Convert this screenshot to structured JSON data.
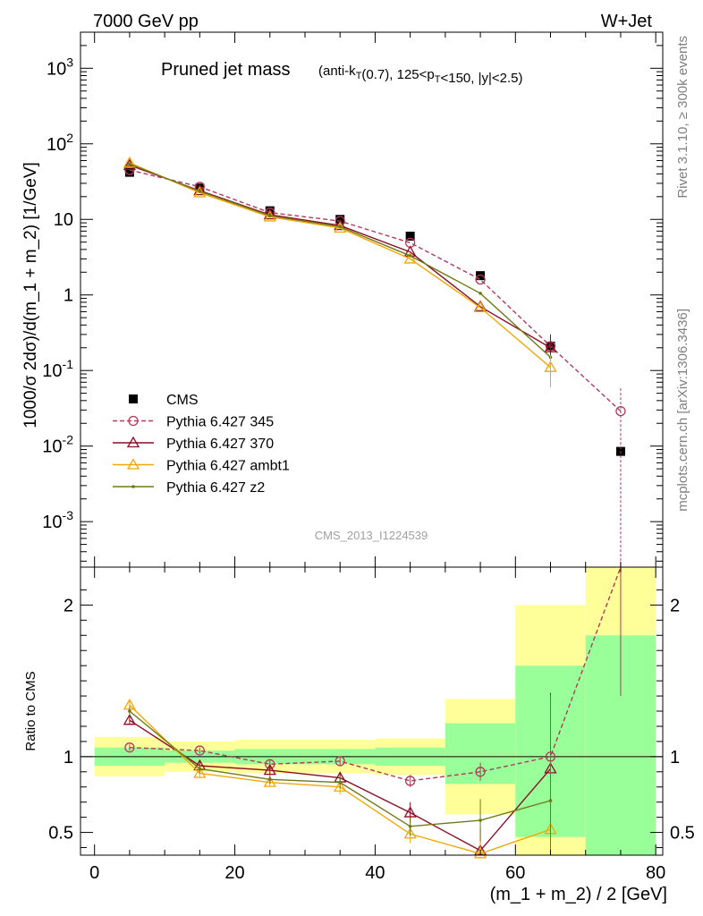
{
  "header": {
    "left": "7000 GeV pp",
    "right": "W+Jet",
    "side_top": "Rivet 3.1.10, ≥ 300k events",
    "side_bottom": "mcplots.cern.ch [arXiv:1306.3436]",
    "watermark": "CMS_2013_I1224539"
  },
  "chart_data": [
    {
      "type": "scatter",
      "title": "Pruned jet mass",
      "subtitle": "(anti-k_T(0.7), 125<p_T<150, |y|<2.5)",
      "xlabel": "",
      "ylabel": "1000/σ 2dσ)/d(m_1 + m_2) [1/GeV]",
      "yscale": "log",
      "xlim": [
        -2,
        81
      ],
      "ylim": [
        0.00025,
        3000
      ],
      "x_ticks": [
        "0",
        "20",
        "40",
        "60",
        "80"
      ],
      "y_ticks": [
        "10^-3",
        "10^-2",
        "10^-1",
        "1",
        "10",
        "10^2",
        "10^3"
      ],
      "legend_position": "bottom-left",
      "series": [
        {
          "name": "CMS",
          "color": "#000000",
          "marker": "square",
          "x": [
            5,
            15,
            25,
            35,
            45,
            55,
            65,
            75
          ],
          "y": [
            42,
            26,
            13,
            10,
            6,
            1.8,
            0.21,
            0.0085
          ]
        },
        {
          "name": "Pythia 6.427 345",
          "color": "#b03a5a",
          "marker": "circle",
          "dashed": true,
          "x": [
            5,
            15,
            25,
            35,
            45,
            55,
            65,
            75
          ],
          "y": [
            45,
            27,
            12.3,
            9.5,
            4.9,
            1.6,
            0.21,
            0.029
          ]
        },
        {
          "name": "Pythia 6.427 370",
          "color": "#8b0e26",
          "marker": "triangle",
          "x": [
            5,
            15,
            25,
            35,
            45,
            55,
            65
          ],
          "y": [
            52,
            24,
            11.5,
            8.3,
            3.7,
            0.7,
            0.2
          ]
        },
        {
          "name": "Pythia 6.427 ambt1",
          "color": "#f0a808",
          "marker": "triangle",
          "x": [
            5,
            15,
            25,
            35,
            45,
            55,
            65
          ],
          "y": [
            56,
            22.5,
            10.8,
            7.7,
            3.0,
            0.68,
            0.11
          ]
        },
        {
          "name": "Pythia 6.427 z2",
          "color": "#6e7a18",
          "marker": "dot",
          "x": [
            5,
            15,
            25,
            35,
            45,
            55,
            65
          ],
          "y": [
            54,
            23.5,
            11.2,
            8.0,
            3.3,
            1.05,
            0.15
          ]
        }
      ]
    },
    {
      "type": "line",
      "xlabel": "(m_1 + m_2) / 2 [GeV]",
      "ylabel": "Ratio to CMS",
      "xlim": [
        -2,
        81
      ],
      "ylim": [
        0.35,
        2.25
      ],
      "x_ticks": [
        "0",
        "20",
        "40",
        "60",
        "80"
      ],
      "y_ticks": [
        "0.5",
        "1",
        "2"
      ],
      "bands": [
        {
          "x0": 0,
          "x1": 10,
          "green": [
            0.94,
            1.06
          ],
          "yellow": [
            0.87,
            1.13
          ]
        },
        {
          "x0": 10,
          "x1": 20,
          "green": [
            0.96,
            1.04
          ],
          "yellow": [
            0.9,
            1.1
          ]
        },
        {
          "x0": 20,
          "x1": 30,
          "green": [
            0.95,
            1.05
          ],
          "yellow": [
            0.89,
            1.11
          ]
        },
        {
          "x0": 30,
          "x1": 40,
          "green": [
            0.95,
            1.05
          ],
          "yellow": [
            0.89,
            1.11
          ]
        },
        {
          "x0": 40,
          "x1": 50,
          "green": [
            0.94,
            1.06
          ],
          "yellow": [
            0.88,
            1.12
          ]
        },
        {
          "x0": 50,
          "x1": 60,
          "green": [
            0.82,
            1.22
          ],
          "yellow": [
            0.62,
            1.38
          ]
        },
        {
          "x0": 60,
          "x1": 70,
          "green": [
            0.47,
            1.6
          ],
          "yellow": [
            0.3,
            2.0
          ]
        },
        {
          "x0": 70,
          "x1": 80,
          "green": [
            0.3,
            1.8
          ],
          "yellow": [
            0.3,
            2.4
          ]
        }
      ],
      "series": [
        {
          "name": "Pythia 6.427 345",
          "color": "#b03a5a",
          "marker": "circle",
          "dashed": true,
          "x": [
            5,
            15,
            25,
            35,
            45,
            55,
            65,
            75
          ],
          "y": [
            1.06,
            1.04,
            0.95,
            0.97,
            0.84,
            0.9,
            1.0,
            3.4
          ],
          "err": [
            0.02,
            0.02,
            0.03,
            0.03,
            0.04,
            0.06,
            0.4,
            2
          ]
        },
        {
          "name": "Pythia 6.427 370",
          "color": "#8b0e26",
          "marker": "triangle",
          "x": [
            5,
            15,
            25,
            35,
            45,
            55,
            65
          ],
          "y": [
            1.24,
            0.94,
            0.91,
            0.86,
            0.63,
            0.38,
            0.92
          ],
          "err": [
            0.03,
            0.03,
            0.03,
            0.04,
            0.07,
            0.15,
            0.5
          ]
        },
        {
          "name": "Pythia 6.427 ambt1",
          "color": "#f0a808",
          "marker": "triangle",
          "x": [
            5,
            15,
            25,
            35,
            45,
            55,
            65
          ],
          "y": [
            1.34,
            0.89,
            0.83,
            0.8,
            0.49,
            0.36,
            0.52
          ],
          "err": [
            0.03,
            0.03,
            0.03,
            0.05,
            0.06,
            0.15,
            0.3
          ]
        },
        {
          "name": "Pythia 6.427 z2",
          "color": "#6e7a18",
          "marker": "dot",
          "x": [
            5,
            15,
            25,
            35,
            45,
            55,
            65
          ],
          "y": [
            1.3,
            0.92,
            0.85,
            0.83,
            0.54,
            0.58,
            0.71
          ],
          "err": [
            0.03,
            0.03,
            0.03,
            0.04,
            0.06,
            0.14,
            0.7
          ]
        }
      ]
    }
  ]
}
